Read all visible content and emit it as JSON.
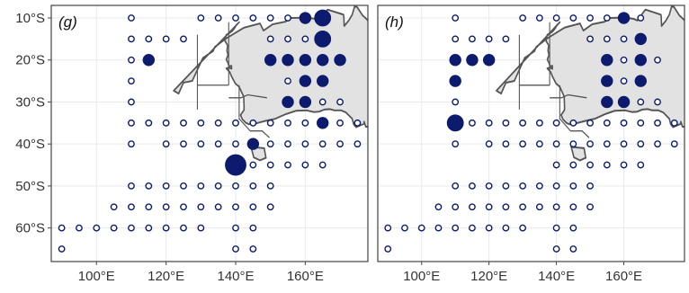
{
  "panels": [
    {
      "label": "(g)",
      "markers": [
        [
          110,
          10,
          "o",
          1
        ],
        [
          130,
          10,
          "o",
          1
        ],
        [
          135,
          10,
          "o",
          1
        ],
        [
          140,
          10,
          "o",
          1
        ],
        [
          145,
          10,
          "o",
          1
        ],
        [
          150,
          10,
          "o",
          1
        ],
        [
          155,
          10,
          "o",
          1
        ],
        [
          160,
          10,
          "f",
          2
        ],
        [
          165,
          10,
          "f",
          3
        ],
        [
          110,
          15,
          "o",
          1
        ],
        [
          115,
          15,
          "o",
          1
        ],
        [
          120,
          15,
          "o",
          1
        ],
        [
          125,
          15,
          "o",
          1
        ],
        [
          150,
          15,
          "o",
          1
        ],
        [
          155,
          15,
          "o",
          1
        ],
        [
          160,
          15,
          "o",
          1
        ],
        [
          165,
          15,
          "f",
          3
        ],
        [
          110,
          20,
          "o",
          1
        ],
        [
          115,
          20,
          "f",
          2
        ],
        [
          150,
          20,
          "f",
          2
        ],
        [
          155,
          20,
          "f",
          2
        ],
        [
          160,
          20,
          "f",
          2
        ],
        [
          165,
          20,
          "f",
          2
        ],
        [
          170,
          20,
          "f",
          2
        ],
        [
          110,
          25,
          "o",
          1
        ],
        [
          155,
          25,
          "o",
          1
        ],
        [
          160,
          25,
          "f",
          2
        ],
        [
          165,
          25,
          "f",
          2
        ],
        [
          110,
          30,
          "o",
          1
        ],
        [
          155,
          30,
          "f",
          2
        ],
        [
          160,
          30,
          "f",
          2
        ],
        [
          165,
          30,
          "o",
          1
        ],
        [
          170,
          30,
          "o",
          1
        ],
        [
          110,
          35,
          "o",
          1
        ],
        [
          115,
          35,
          "o",
          1
        ],
        [
          120,
          35,
          "o",
          1
        ],
        [
          125,
          35,
          "o",
          1
        ],
        [
          130,
          35,
          "o",
          1
        ],
        [
          135,
          35,
          "o",
          1
        ],
        [
          140,
          35,
          "o",
          1
        ],
        [
          145,
          35,
          "o",
          1
        ],
        [
          150,
          35,
          "o",
          1
        ],
        [
          155,
          35,
          "o",
          1
        ],
        [
          160,
          35,
          "o",
          1
        ],
        [
          165,
          35,
          "f",
          2
        ],
        [
          170,
          35,
          "o",
          1
        ],
        [
          175,
          35,
          "o",
          1
        ],
        [
          110,
          40,
          "o",
          1
        ],
        [
          120,
          40,
          "o",
          1
        ],
        [
          125,
          40,
          "o",
          1
        ],
        [
          130,
          40,
          "o",
          1
        ],
        [
          135,
          40,
          "o",
          1
        ],
        [
          140,
          40,
          "o",
          1
        ],
        [
          145,
          40,
          "f",
          2
        ],
        [
          150,
          40,
          "o",
          1
        ],
        [
          155,
          40,
          "o",
          1
        ],
        [
          160,
          40,
          "o",
          1
        ],
        [
          165,
          40,
          "o",
          1
        ],
        [
          170,
          40,
          "o",
          1
        ],
        [
          175,
          40,
          "o",
          1
        ],
        [
          140,
          45,
          "f",
          4
        ],
        [
          145,
          45,
          "o",
          1
        ],
        [
          150,
          45,
          "o",
          1
        ],
        [
          155,
          45,
          "o",
          1
        ],
        [
          160,
          45,
          "o",
          1
        ],
        [
          165,
          45,
          "o",
          1
        ],
        [
          110,
          50,
          "o",
          1
        ],
        [
          115,
          50,
          "o",
          1
        ],
        [
          120,
          50,
          "o",
          1
        ],
        [
          125,
          50,
          "o",
          1
        ],
        [
          130,
          50,
          "o",
          1
        ],
        [
          135,
          50,
          "o",
          1
        ],
        [
          140,
          50,
          "o",
          1
        ],
        [
          145,
          50,
          "o",
          1
        ],
        [
          150,
          50,
          "o",
          1
        ],
        [
          105,
          55,
          "o",
          1
        ],
        [
          110,
          55,
          "o",
          1
        ],
        [
          115,
          55,
          "o",
          1
        ],
        [
          120,
          55,
          "o",
          1
        ],
        [
          125,
          55,
          "o",
          1
        ],
        [
          130,
          55,
          "o",
          1
        ],
        [
          135,
          55,
          "o",
          1
        ],
        [
          140,
          55,
          "o",
          1
        ],
        [
          145,
          55,
          "o",
          1
        ],
        [
          150,
          55,
          "o",
          1
        ],
        [
          90,
          60,
          "o",
          1
        ],
        [
          95,
          60,
          "o",
          1
        ],
        [
          100,
          60,
          "o",
          1
        ],
        [
          105,
          60,
          "o",
          1
        ],
        [
          110,
          60,
          "o",
          1
        ],
        [
          115,
          60,
          "o",
          1
        ],
        [
          120,
          60,
          "o",
          1
        ],
        [
          125,
          60,
          "o",
          1
        ],
        [
          130,
          60,
          "o",
          1
        ],
        [
          140,
          60,
          "o",
          1
        ],
        [
          145,
          60,
          "o",
          1
        ],
        [
          90,
          65,
          "o",
          1
        ],
        [
          140,
          65,
          "o",
          1
        ],
        [
          145,
          65,
          "o",
          1
        ]
      ]
    },
    {
      "label": "(h)",
      "markers": [
        [
          110,
          10,
          "o",
          1
        ],
        [
          130,
          10,
          "o",
          1
        ],
        [
          135,
          10,
          "o",
          1
        ],
        [
          140,
          10,
          "o",
          1
        ],
        [
          145,
          10,
          "o",
          1
        ],
        [
          150,
          10,
          "o",
          1
        ],
        [
          155,
          10,
          "o",
          1
        ],
        [
          160,
          10,
          "f",
          2
        ],
        [
          165,
          10,
          "o",
          1
        ],
        [
          110,
          15,
          "o",
          1
        ],
        [
          115,
          15,
          "o",
          1
        ],
        [
          120,
          15,
          "o",
          1
        ],
        [
          125,
          15,
          "o",
          1
        ],
        [
          150,
          15,
          "o",
          1
        ],
        [
          155,
          15,
          "o",
          1
        ],
        [
          160,
          15,
          "o",
          1
        ],
        [
          165,
          15,
          "f",
          2
        ],
        [
          110,
          20,
          "f",
          2
        ],
        [
          115,
          20,
          "f",
          2
        ],
        [
          120,
          20,
          "f",
          2
        ],
        [
          155,
          20,
          "f",
          2
        ],
        [
          160,
          20,
          "o",
          1
        ],
        [
          165,
          20,
          "f",
          2
        ],
        [
          170,
          20,
          "o",
          1
        ],
        [
          110,
          25,
          "f",
          2
        ],
        [
          155,
          25,
          "f",
          2
        ],
        [
          160,
          25,
          "o",
          1
        ],
        [
          165,
          25,
          "f",
          2
        ],
        [
          110,
          30,
          "o",
          1
        ],
        [
          155,
          30,
          "f",
          2
        ],
        [
          160,
          30,
          "f",
          2
        ],
        [
          165,
          30,
          "o",
          1
        ],
        [
          170,
          30,
          "o",
          1
        ],
        [
          110,
          35,
          "f",
          3
        ],
        [
          115,
          35,
          "o",
          1
        ],
        [
          120,
          35,
          "o",
          1
        ],
        [
          125,
          35,
          "o",
          1
        ],
        [
          130,
          35,
          "o",
          1
        ],
        [
          135,
          35,
          "o",
          1
        ],
        [
          140,
          35,
          "o",
          1
        ],
        [
          145,
          35,
          "o",
          1
        ],
        [
          150,
          35,
          "o",
          1
        ],
        [
          155,
          35,
          "o",
          1
        ],
        [
          160,
          35,
          "o",
          1
        ],
        [
          165,
          35,
          "o",
          1
        ],
        [
          170,
          35,
          "o",
          1
        ],
        [
          175,
          35,
          "o",
          1
        ],
        [
          110,
          40,
          "o",
          1
        ],
        [
          120,
          40,
          "o",
          1
        ],
        [
          125,
          40,
          "o",
          1
        ],
        [
          130,
          40,
          "o",
          1
        ],
        [
          135,
          40,
          "o",
          1
        ],
        [
          140,
          40,
          "o",
          1
        ],
        [
          145,
          40,
          "o",
          1
        ],
        [
          150,
          40,
          "o",
          1
        ],
        [
          155,
          40,
          "o",
          1
        ],
        [
          160,
          40,
          "o",
          1
        ],
        [
          165,
          40,
          "o",
          1
        ],
        [
          170,
          40,
          "o",
          1
        ],
        [
          175,
          40,
          "o",
          1
        ],
        [
          140,
          45,
          "o",
          1
        ],
        [
          145,
          45,
          "o",
          1
        ],
        [
          150,
          45,
          "o",
          1
        ],
        [
          155,
          45,
          "o",
          1
        ],
        [
          160,
          45,
          "o",
          1
        ],
        [
          165,
          45,
          "o",
          1
        ],
        [
          110,
          50,
          "o",
          1
        ],
        [
          115,
          50,
          "o",
          1
        ],
        [
          120,
          50,
          "o",
          1
        ],
        [
          125,
          50,
          "o",
          1
        ],
        [
          130,
          50,
          "o",
          1
        ],
        [
          135,
          50,
          "o",
          1
        ],
        [
          140,
          50,
          "o",
          1
        ],
        [
          145,
          50,
          "o",
          1
        ],
        [
          150,
          50,
          "o",
          1
        ],
        [
          105,
          55,
          "o",
          1
        ],
        [
          110,
          55,
          "o",
          1
        ],
        [
          115,
          55,
          "o",
          1
        ],
        [
          120,
          55,
          "o",
          1
        ],
        [
          125,
          55,
          "o",
          1
        ],
        [
          130,
          55,
          "o",
          1
        ],
        [
          135,
          55,
          "o",
          1
        ],
        [
          140,
          55,
          "o",
          1
        ],
        [
          145,
          55,
          "o",
          1
        ],
        [
          150,
          55,
          "o",
          1
        ],
        [
          90,
          60,
          "o",
          1
        ],
        [
          95,
          60,
          "o",
          1
        ],
        [
          100,
          60,
          "o",
          1
        ],
        [
          105,
          60,
          "o",
          1
        ],
        [
          110,
          60,
          "o",
          1
        ],
        [
          115,
          60,
          "o",
          1
        ],
        [
          120,
          60,
          "o",
          1
        ],
        [
          125,
          60,
          "o",
          1
        ],
        [
          130,
          60,
          "o",
          1
        ],
        [
          140,
          60,
          "o",
          1
        ],
        [
          145,
          60,
          "o",
          1
        ],
        [
          90,
          65,
          "o",
          1
        ],
        [
          140,
          65,
          "o",
          1
        ],
        [
          145,
          65,
          "o",
          1
        ]
      ]
    }
  ],
  "axes": {
    "lon_range": [
      87,
      178
    ],
    "lat_range": [
      7,
      68
    ],
    "lon_ticks": [
      100,
      120,
      140,
      160
    ],
    "lon_tick_labels": [
      "100°E",
      "120°E",
      "140°E",
      "160°E"
    ],
    "lat_ticks": [
      10,
      20,
      30,
      40,
      50,
      60
    ],
    "lat_tick_labels": [
      "10°S",
      "20°S",
      "30°S",
      "40°S",
      "50°S",
      "60°S"
    ],
    "gridlines": true
  },
  "colors": {
    "marker": "#0d1b6e",
    "land_fill": "#e2e2e2",
    "land_stroke": "#555555",
    "grid": "#e9e9e9",
    "frame": "#444444"
  }
}
